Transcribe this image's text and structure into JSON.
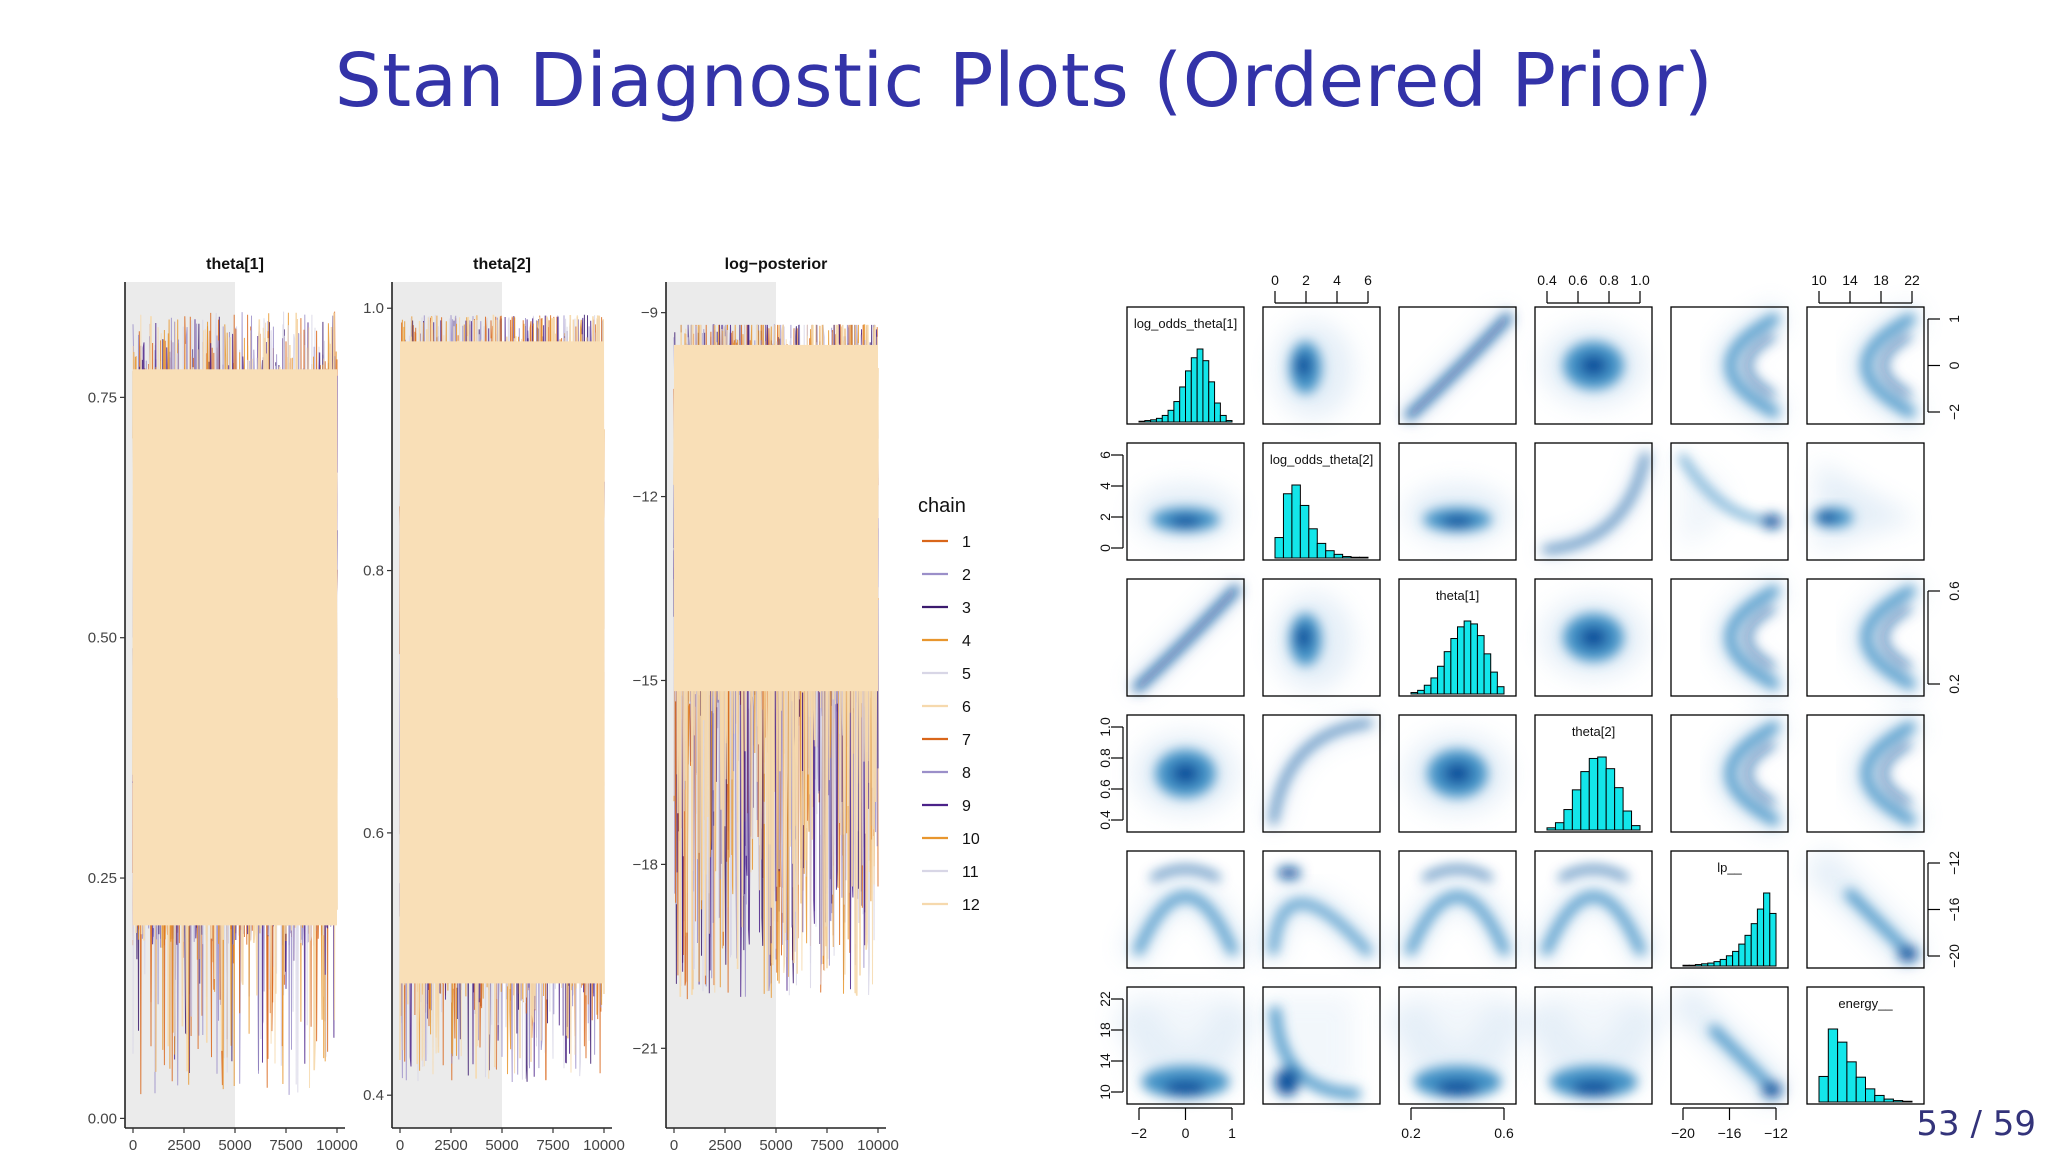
{
  "slide": {
    "title": "Stan Diagnostic Plots (Ordered Prior)",
    "page_number": "53 / 59"
  },
  "chart_data": [
    {
      "type": "line",
      "subtype": "trace",
      "title": "theta[1]",
      "xlim": [
        0,
        10000
      ],
      "xticks": [
        "0",
        "2500",
        "5000",
        "7500",
        "10000"
      ],
      "ylim": [
        -0.01,
        0.87
      ],
      "yticks": [
        0.0,
        0.25,
        0.5,
        0.75
      ],
      "ytick_labels": [
        "0.00",
        "0.25",
        "0.50",
        "0.75"
      ],
      "warmup_shaded_until": 5000,
      "band": {
        "low": 0.18,
        "high": 0.8,
        "spike_low": 0.02,
        "spike_high": 0.84
      }
    },
    {
      "type": "line",
      "subtype": "trace",
      "title": "theta[2]",
      "xlim": [
        0,
        10000
      ],
      "xticks": [
        "0",
        "2500",
        "5000",
        "7500",
        "10000"
      ],
      "ylim": [
        0.375,
        1.02
      ],
      "yticks": [
        0.4,
        0.6,
        0.8,
        1.0
      ],
      "ytick_labels": [
        "0.4",
        "0.6",
        "0.8",
        "1.0"
      ],
      "warmup_shaded_until": 5000,
      "band": {
        "low": 0.47,
        "high": 0.99,
        "spike_low": 0.41,
        "spike_high": 0.995
      }
    },
    {
      "type": "line",
      "subtype": "trace",
      "title": "log−posterior",
      "xlim": [
        0,
        10000
      ],
      "xticks": [
        "0",
        "2500",
        "5000",
        "7500",
        "10000"
      ],
      "ylim": [
        -22.3,
        -8.5
      ],
      "yticks": [
        -21,
        -18,
        -15,
        -12,
        -9
      ],
      "ytick_labels": [
        "−21",
        "−18",
        "−15",
        "−12",
        "−9"
      ],
      "warmup_shaded_until": 5000,
      "band": {
        "low": -15.5,
        "high": -9.2,
        "spike_low": -20.2,
        "spike_high": -9.2
      }
    },
    {
      "type": "legend",
      "title": "chain",
      "entries": [
        {
          "label": "1",
          "color": "#d9661a"
        },
        {
          "label": "2",
          "color": "#9b8fc9"
        },
        {
          "label": "3",
          "color": "#3b1a6e"
        },
        {
          "label": "4",
          "color": "#e8962e"
        },
        {
          "label": "5",
          "color": "#d8d6e6"
        },
        {
          "label": "6",
          "color": "#f6d9ad"
        },
        {
          "label": "7",
          "color": "#d9661a"
        },
        {
          "label": "8",
          "color": "#9b8fc9"
        },
        {
          "label": "9",
          "color": "#4b2289"
        },
        {
          "label": "10",
          "color": "#e8962e"
        },
        {
          "label": "11",
          "color": "#d8d6e6"
        },
        {
          "label": "12",
          "color": "#f6d9ad"
        }
      ]
    },
    {
      "type": "scatter",
      "subtype": "pairs",
      "variables": [
        "log_odds_theta[1]",
        "log_odds_theta[2]",
        "theta[1]",
        "theta[2]",
        "lp__",
        "energy__"
      ],
      "top_axis_ticks": {
        "log_odds_theta[2]": [
          "0",
          "2",
          "4",
          "6"
        ],
        "theta[2]": [
          "0.4",
          "0.6",
          "0.8",
          "1.0"
        ],
        "energy__": [
          "10",
          "14",
          "18",
          "22"
        ]
      },
      "bottom_axis_ticks": {
        "log_odds_theta[1]": [
          "−2",
          "0",
          "1"
        ],
        "theta[1]": [
          "0.2",
          "0.6"
        ],
        "lp__": [
          "−20",
          "−16",
          "−12"
        ]
      },
      "left_axis_ticks": {
        "log_odds_theta[2]": [
          "0",
          "2",
          "4",
          "6"
        ],
        "theta[2]": [
          "0.4",
          "0.6",
          "0.8",
          "1.0"
        ],
        "energy__": [
          "10",
          "14",
          "18",
          "22"
        ]
      },
      "right_axis_ticks": {
        "log_odds_theta[1]": [
          "−2",
          "0",
          "1"
        ],
        "theta[1]": [
          "0.2",
          "0.6"
        ],
        "lp__": [
          "−20",
          "−16",
          "−12"
        ]
      },
      "histogram_color": "#13e6ea",
      "histograms": {
        "log_odds_theta[1]": [
          1,
          2,
          3,
          5,
          9,
          16,
          28,
          48,
          70,
          88,
          100,
          84,
          55,
          26,
          9,
          2
        ],
        "log_odds_theta[2]": [
          28,
          88,
          100,
          72,
          40,
          20,
          10,
          5,
          2,
          1,
          1
        ],
        "theta[1]": [
          2,
          5,
          12,
          22,
          38,
          58,
          76,
          92,
          100,
          96,
          80,
          55,
          30,
          10
        ],
        "theta[2]": [
          3,
          10,
          28,
          55,
          80,
          98,
          100,
          84,
          58,
          26,
          6
        ],
        "lp__": [
          1,
          1,
          2,
          3,
          4,
          6,
          9,
          14,
          20,
          30,
          42,
          58,
          78,
          100,
          72
        ],
        "energy__": [
          35,
          100,
          82,
          55,
          34,
          18,
          9,
          4,
          2,
          1
        ]
      }
    }
  ]
}
